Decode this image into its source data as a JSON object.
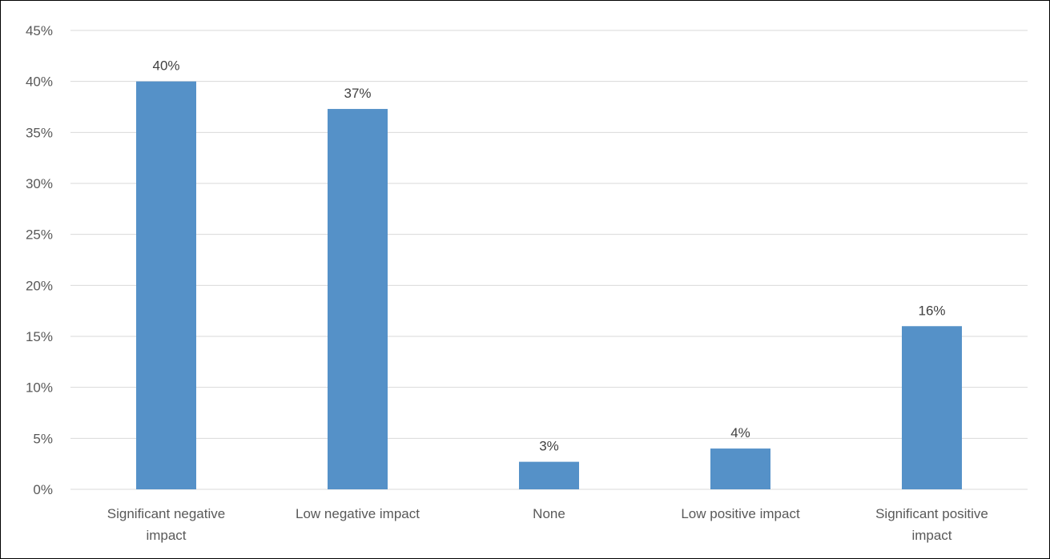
{
  "chart_data": {
    "type": "bar",
    "categories": [
      "Significant negative impact",
      "Low negative impact",
      "None",
      "Low positive impact",
      "Significant positive impact"
    ],
    "category_lines": [
      [
        "Significant negative",
        "impact"
      ],
      [
        "Low negative impact"
      ],
      [
        "None"
      ],
      [
        "Low positive impact"
      ],
      [
        "Significant positive",
        "impact"
      ]
    ],
    "values": [
      40,
      37.3,
      2.7,
      4,
      16
    ],
    "data_labels": [
      "40%",
      "37%",
      "3%",
      "4%",
      "16%"
    ],
    "y_ticks": [
      "0%",
      "5%",
      "10%",
      "15%",
      "20%",
      "25%",
      "30%",
      "35%",
      "40%",
      "45%"
    ],
    "ylim": [
      0,
      45
    ],
    "grid": true,
    "legend": "none",
    "bar_color": "#5591c8",
    "grid_color": "#d9d9d9"
  }
}
